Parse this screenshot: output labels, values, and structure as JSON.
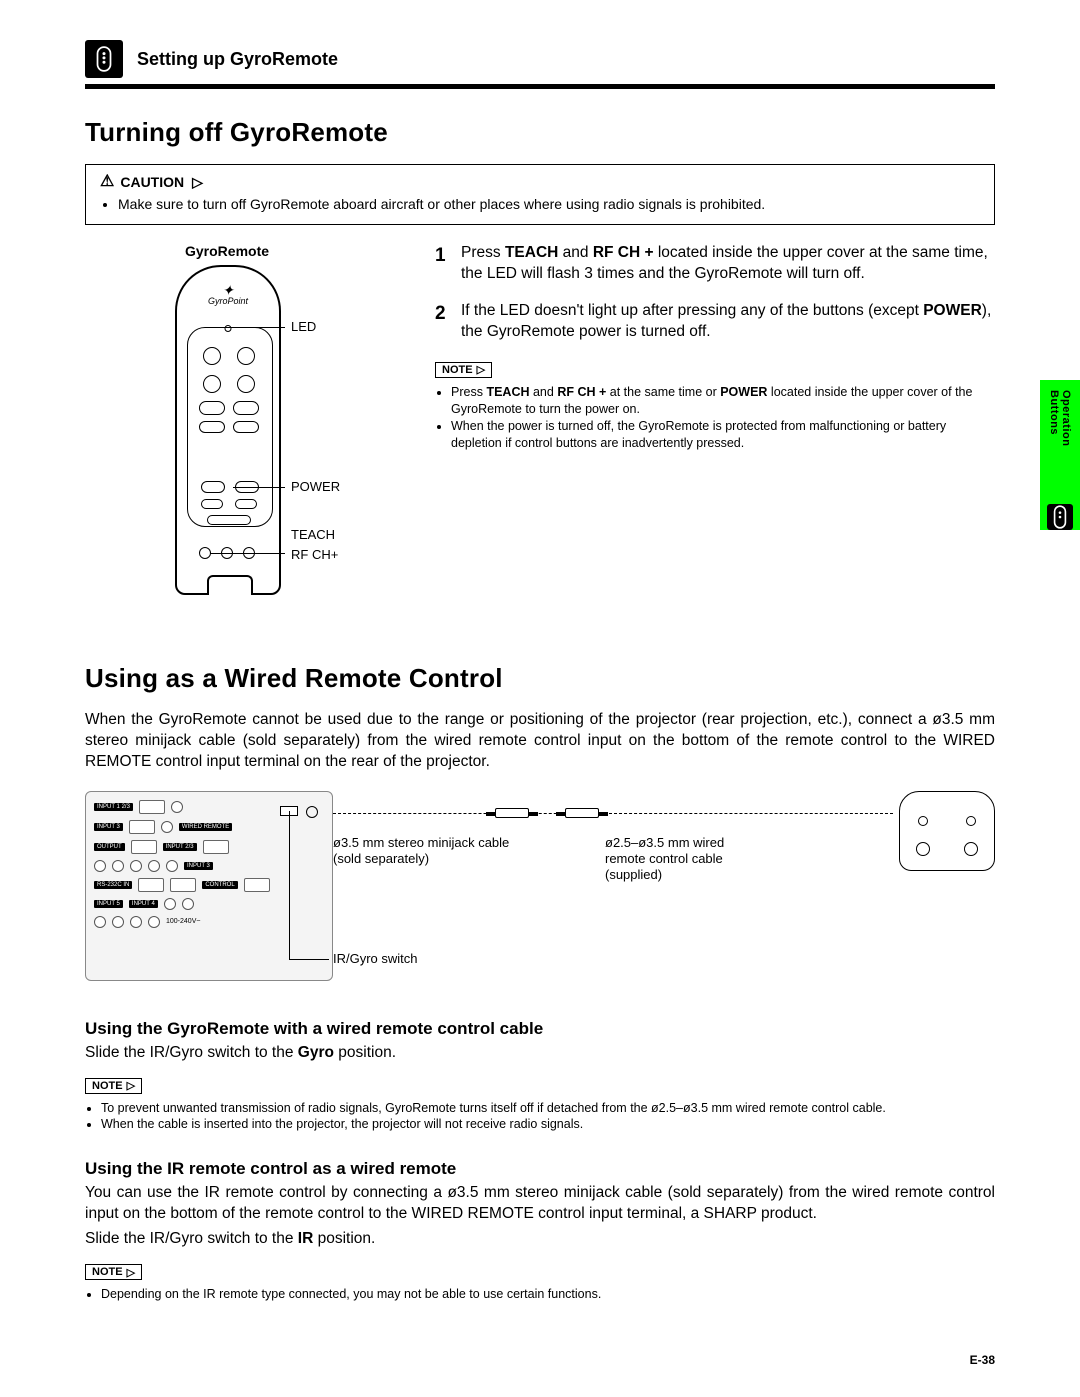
{
  "header": {
    "chapter": "Setting up GyroRemote"
  },
  "section1": {
    "title": "Turning off GyroRemote",
    "caution_label": "CAUTION",
    "caution_items": [
      "Make sure to turn off GyroRemote aboard aircraft or other places where using radio signals is prohibited."
    ],
    "remote_title": "GyroRemote",
    "leads": {
      "led": "LED",
      "power": "POWER",
      "teach": "TEACH",
      "rfch": "RF CH+"
    },
    "steps": [
      {
        "num": "1",
        "html": "Press <b>TEACH</b> and <b>RF CH +</b> located inside the upper cover at the same time, the LED will flash 3 times and the GyroRemote will turn off."
      },
      {
        "num": "2",
        "html": "If the LED doesn't light up after pressing any of the buttons (except <b>POWER</b>), the GyroRemote power is turned off."
      }
    ],
    "note_label": "NOTE",
    "notes": [
      "Press <b>TEACH</b> and <b>RF CH +</b> at the same time or <b>POWER</b> located inside the upper cover of the GyroRemote to turn the power on.",
      "When the power is turned off, the GyroRemote is protected from malfunctioning or battery depletion if control buttons are inadvertently pressed."
    ]
  },
  "sidetab": {
    "text": "Operation Buttons"
  },
  "section2": {
    "title": "Using as a Wired Remote Control",
    "intro": "When the GyroRemote cannot be used due to the range or positioning of the projector (rear projection, etc.), connect a ø3.5 mm stereo minijack cable (sold separately) from the wired remote control input on the bottom of the remote control to the WIRED REMOTE control input terminal on the rear of the projector.",
    "diagram": {
      "cable1_l1": "ø3.5 mm stereo minijack cable",
      "cable1_l2": "(sold separately)",
      "cable2_l1": "ø2.5–ø3.5 mm wired",
      "cable2_l2": "remote control cable",
      "cable2_l3": "(supplied)",
      "irgyro": "IR/Gyro switch"
    },
    "sub1": {
      "heading": "Using the GyroRemote with a wired remote control cable",
      "body": "Slide the IR/Gyro switch to the <b>Gyro</b> position.",
      "note_label": "NOTE",
      "notes": [
        "To prevent unwanted transmission of radio signals, GyroRemote turns itself off if detached from the ø2.5–ø3.5 mm wired remote control cable.",
        "When the cable is inserted into the projector, the projector will not receive radio signals."
      ]
    },
    "sub2": {
      "heading": "Using the IR remote control as a wired remote",
      "body": "You can use the IR remote control by connecting a ø3.5 mm stereo minijack cable (sold separately) from the wired remote control input on the bottom of the remote control to the WIRED REMOTE control input terminal, a SHARP product.",
      "body2": "Slide the IR/Gyro switch to the <b>IR</b> position.",
      "note_label": "NOTE",
      "notes": [
        "Depending on the IR remote type connected, you may not be able to use certain functions."
      ]
    }
  },
  "page": "E-38"
}
